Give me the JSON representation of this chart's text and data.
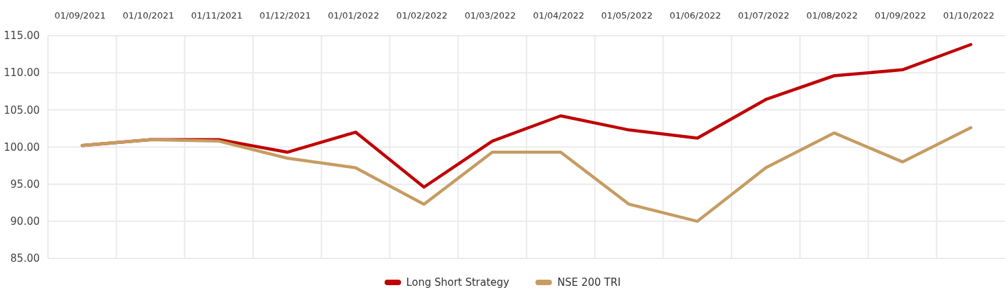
{
  "chart_data": {
    "type": "line",
    "categories": [
      "01/09/2021",
      "01/10/2021",
      "01/11/2021",
      "01/12/2021",
      "01/01/2022",
      "01/02/2022",
      "01/03/2022",
      "01/04/2022",
      "01/05/2022",
      "01/06/2022",
      "01/07/2022",
      "01/08/2022",
      "01/09/2022",
      "01/10/2022"
    ],
    "series": [
      {
        "name": "Long Short Strategy",
        "color": "#c00000",
        "values": [
          100.2,
          101.0,
          101.0,
          99.3,
          102.0,
          94.6,
          100.8,
          104.2,
          102.3,
          101.2,
          106.4,
          109.6,
          110.4,
          113.8
        ]
      },
      {
        "name": "NSE 200 TRI",
        "color": "#c69c61",
        "values": [
          100.2,
          101.0,
          100.8,
          98.5,
          97.2,
          92.3,
          99.3,
          99.3,
          92.3,
          90.0,
          97.2,
          101.9,
          98.0,
          102.6
        ]
      }
    ],
    "ylim": [
      85,
      115
    ],
    "yticks": [
      {
        "value": 85,
        "label": "85.00"
      },
      {
        "value": 90,
        "label": "90.00"
      },
      {
        "value": 95,
        "label": "95.00"
      },
      {
        "value": 100,
        "label": "100.00"
      },
      {
        "value": 105,
        "label": "105.00"
      },
      {
        "value": 110,
        "label": "110.00"
      },
      {
        "value": 115,
        "label": "115.00"
      }
    ],
    "grid": true,
    "legend": "bottom",
    "line_style": "solid"
  }
}
